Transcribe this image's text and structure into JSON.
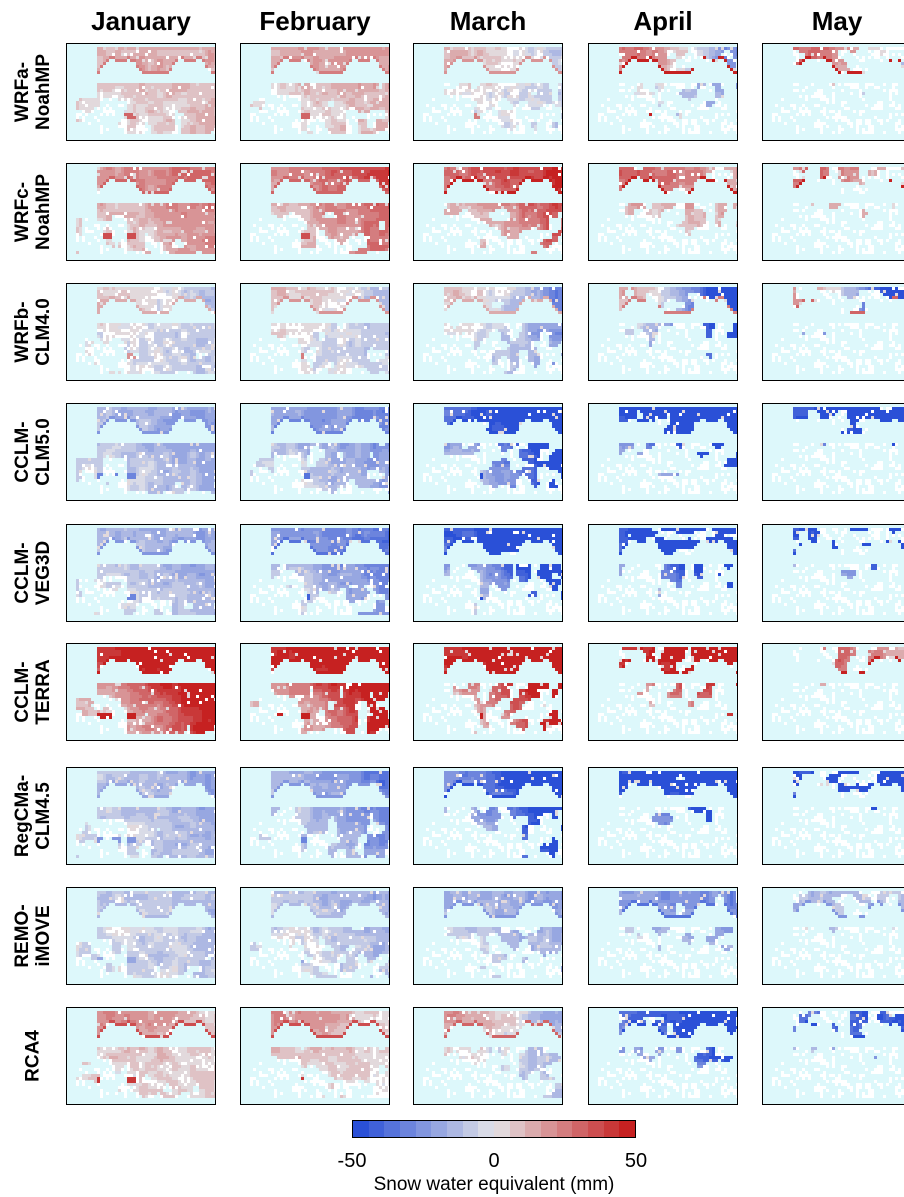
{
  "chart_data": {
    "type": "heatmap",
    "columns": [
      "January",
      "February",
      "March",
      "April",
      "May"
    ],
    "rows": [
      "WRFa-\nNoahMP",
      "WRFc-\nNoahMP",
      "WRFb-\nCLM4.0",
      "CCLM-\nCLM5.0",
      "CCLM-\nVEG3D",
      "CCLM-\nTERRA",
      "RegCMa-\nCLM4.5",
      "REMO-\niMOVE",
      "RCA4"
    ],
    "anomaly_mm": [
      [
        {
          "n": 15,
          "s": 5,
          "e": 10
        },
        {
          "n": 15,
          "s": 5,
          "e": 12
        },
        {
          "n": 12,
          "s": -3,
          "e": -5
        },
        {
          "n": 30,
          "s": -15,
          "e": -20
        },
        {
          "n": 35,
          "s": -5,
          "e": -10
        }
      ],
      [
        {
          "n": 20,
          "s": 10,
          "e": 20
        },
        {
          "n": 22,
          "s": 12,
          "e": 28
        },
        {
          "n": 30,
          "s": 5,
          "e": 30
        },
        {
          "n": 35,
          "s": 5,
          "e": 10
        },
        {
          "n": 30,
          "s": 5,
          "e": 5
        }
      ],
      [
        {
          "n": 10,
          "s": -5,
          "e": -8
        },
        {
          "n": 12,
          "s": -3,
          "e": -8
        },
        {
          "n": 10,
          "s": -10,
          "e": -20
        },
        {
          "n": 15,
          "s": -30,
          "e": -45
        },
        {
          "n": 20,
          "s": -40,
          "e": -50
        }
      ],
      [
        {
          "n": -15,
          "s": -12,
          "e": -15
        },
        {
          "n": -20,
          "s": -12,
          "e": -20
        },
        {
          "n": -40,
          "s": -15,
          "e": -50
        },
        {
          "n": -50,
          "s": -20,
          "e": -50
        },
        {
          "n": -50,
          "s": -10,
          "e": -50
        }
      ],
      [
        {
          "n": -15,
          "s": -8,
          "e": -15
        },
        {
          "n": -25,
          "s": -10,
          "e": -25
        },
        {
          "n": -45,
          "s": -10,
          "e": -50
        },
        {
          "n": -50,
          "s": -20,
          "e": -50
        },
        {
          "n": -50,
          "s": -5,
          "e": -50
        }
      ],
      [
        {
          "n": 50,
          "s": 15,
          "e": 50
        },
        {
          "n": 50,
          "s": 18,
          "e": 50
        },
        {
          "n": 50,
          "s": 10,
          "e": 50
        },
        {
          "n": 50,
          "s": 5,
          "e": 40
        },
        {
          "n": 35,
          "s": 0,
          "e": 10
        }
      ],
      [
        {
          "n": -12,
          "s": -10,
          "e": -15
        },
        {
          "n": -15,
          "s": -10,
          "e": -25
        },
        {
          "n": -30,
          "s": -12,
          "e": -50
        },
        {
          "n": -50,
          "s": -20,
          "e": -50
        },
        {
          "n": -50,
          "s": -10,
          "e": -50
        }
      ],
      [
        {
          "n": -8,
          "s": -8,
          "e": -10
        },
        {
          "n": -10,
          "s": -8,
          "e": -12
        },
        {
          "n": -15,
          "s": -10,
          "e": -15
        },
        {
          "n": -25,
          "s": -10,
          "e": -20
        },
        {
          "n": -15,
          "s": -3,
          "e": -8
        }
      ],
      [
        {
          "n": 25,
          "s": 5,
          "e": 5
        },
        {
          "n": 25,
          "s": 5,
          "e": 3
        },
        {
          "n": 20,
          "s": -8,
          "e": -12
        },
        {
          "n": -40,
          "s": -15,
          "e": -40
        },
        {
          "n": -40,
          "s": -8,
          "e": -30
        }
      ]
    ],
    "colorbar": {
      "ticks": [
        "-50",
        "0",
        "50"
      ],
      "label": "Snow water equivalent (mm)",
      "range": [
        -50,
        50
      ],
      "levels": 18,
      "neg_color": "#1f47d6",
      "mid_color": "#e4e4e8",
      "pos_color": "#c41515",
      "ocean_color": "#ddf8fb"
    }
  }
}
